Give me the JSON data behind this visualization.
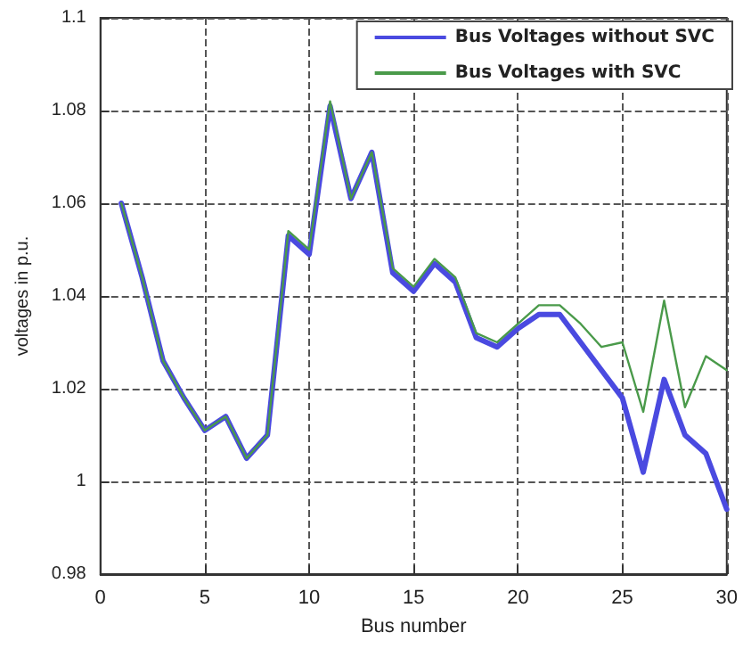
{
  "chart_data": {
    "type": "line",
    "xlabel": "Bus number",
    "ylabel": "voltages in p.u.",
    "x": [
      1,
      2,
      3,
      4,
      5,
      6,
      7,
      8,
      9,
      10,
      11,
      12,
      13,
      14,
      15,
      16,
      17,
      18,
      19,
      20,
      21,
      22,
      23,
      24,
      25,
      26,
      27,
      28,
      29,
      30
    ],
    "series": [
      {
        "name": "Bus Voltages without SVC",
        "color": "#4a4ae0",
        "values": [
          1.06,
          1.044,
          1.026,
          1.018,
          1.011,
          1.014,
          1.005,
          1.01,
          1.053,
          1.049,
          1.081,
          1.061,
          1.071,
          1.045,
          1.041,
          1.047,
          1.043,
          1.031,
          1.029,
          1.033,
          1.036,
          1.036,
          1.03,
          1.024,
          1.018,
          1.002,
          1.022,
          1.01,
          1.006,
          0.994
        ]
      },
      {
        "name": "Bus Voltages with SVC",
        "color": "#4a9a4a",
        "values": [
          1.06,
          1.044,
          1.026,
          1.018,
          1.011,
          1.014,
          1.005,
          1.01,
          1.054,
          1.05,
          1.082,
          1.061,
          1.071,
          1.046,
          1.042,
          1.048,
          1.044,
          1.032,
          1.03,
          1.034,
          1.038,
          1.038,
          1.034,
          1.029,
          1.03,
          1.015,
          1.039,
          1.016,
          1.027,
          1.024
        ]
      }
    ],
    "xlim": [
      0,
      30
    ],
    "xticks": [
      0,
      5,
      10,
      15,
      20,
      25,
      30
    ],
    "ylim": [
      0.98,
      1.1
    ],
    "yticks": [
      0.98,
      1,
      1.02,
      1.04,
      1.06,
      1.08,
      1.1
    ],
    "grid": true,
    "legend": "top right",
    "marker": "none",
    "line_style": "solid"
  }
}
